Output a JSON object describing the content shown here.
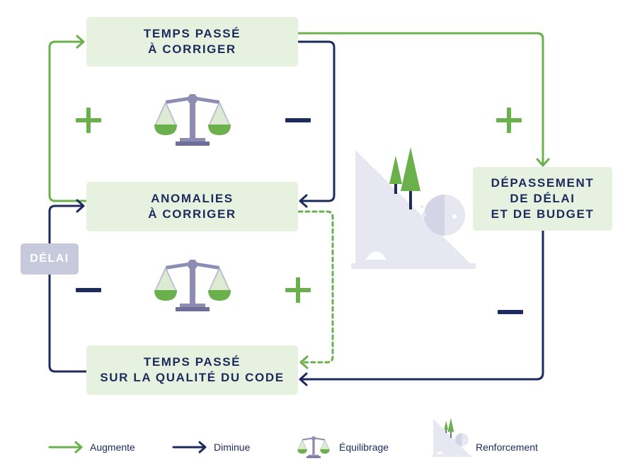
{
  "boxes": {
    "time_fixing": {
      "line1": "TEMPS PASSÉ",
      "line2": "À CORRIGER"
    },
    "anomalies": {
      "line1": "ANOMALIES",
      "line2": "À CORRIGER"
    },
    "code_quality": {
      "line1": "TEMPS PASSÉ",
      "line2": "SUR LA QUALITÉ DU CODE"
    },
    "overrun": {
      "line1": "DÉPASSEMENT",
      "line2": "DE DÉLAI",
      "line3": "ET DE BUDGET"
    }
  },
  "delay_badge": "DÉLAI",
  "legend": {
    "increase": "Augmente",
    "decrease": "Diminue",
    "balancing": "Équilibrage",
    "reinforcing": "Renforcement"
  },
  "colors": {
    "green": "#6ab04c",
    "navy": "#1c2a5c",
    "box_fill": "#e7f1df",
    "badge_fill": "#c7c9dc",
    "scale_purple": "#8d8db4",
    "mountain": "#e6e7f1"
  },
  "icons": [
    "plus-sign-icon",
    "minus-sign-icon",
    "balance-scale-icon",
    "mountain-snowball-icon"
  ]
}
